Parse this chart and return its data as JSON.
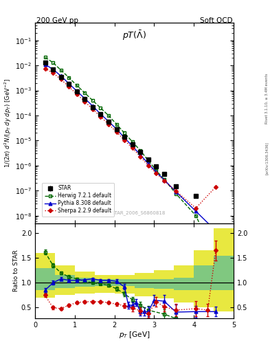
{
  "title_left": "200 GeV pp",
  "title_right": "Soft QCD",
  "panel_title": "pT($\\bar{\\Lambda}$)",
  "ylabel_main": "1/(2$\\pi$) d$^2$N/(p$_T$ dy dp$_T$) [GeV$^{-2}$]",
  "ylabel_ratio": "Ratio to STAR",
  "xlabel": "p$_T$ [GeV]",
  "watermark": "STAR_2006_S6860818",
  "right_label": "Rivet 3.1.10, ≥ 3.4M events",
  "arxiv_label": "[arXiv:1306.3436]",
  "star_x": [
    0.25,
    0.45,
    0.65,
    0.85,
    1.05,
    1.25,
    1.45,
    1.65,
    1.85,
    2.05,
    2.25,
    2.45,
    2.65,
    2.85,
    3.05,
    3.25,
    3.55,
    4.05
  ],
  "star_y": [
    0.013,
    0.007,
    0.0035,
    0.0018,
    0.0009,
    0.00045,
    0.00022,
    0.00011,
    5.5e-05,
    2.8e-05,
    1.4e-05,
    7e-06,
    3.5e-06,
    1.8e-06,
    9e-07,
    4.5e-07,
    1.5e-07,
    6e-08
  ],
  "star_yerr": [
    0.0008,
    0.0004,
    0.0002,
    0.0001,
    5e-05,
    2.5e-05,
    1.2e-05,
    6e-06,
    3e-06,
    1.5e-06,
    8e-07,
    4e-07,
    2e-07,
    1e-07,
    5e-08,
    2.5e-08,
    1e-08,
    5e-09
  ],
  "herwig_x": [
    0.25,
    0.45,
    0.65,
    0.85,
    1.05,
    1.25,
    1.45,
    1.65,
    1.85,
    2.05,
    2.25,
    2.45,
    2.65,
    2.85,
    3.05,
    3.25,
    3.55,
    4.05,
    4.55
  ],
  "herwig_y": [
    0.021,
    0.013,
    0.0065,
    0.0033,
    0.0016,
    0.0008,
    0.0004,
    0.0002,
    0.0001,
    4.5e-05,
    2e-05,
    9e-06,
    4e-06,
    1.6e-06,
    6.5e-07,
    2.8e-07,
    7.5e-08,
    1e-08,
    2e-10
  ],
  "pythia_x": [
    0.25,
    0.45,
    0.65,
    0.85,
    1.05,
    1.25,
    1.45,
    1.65,
    1.85,
    2.05,
    2.25,
    2.45,
    2.65,
    2.85,
    3.05,
    3.25,
    3.55,
    4.05,
    4.55
  ],
  "pythia_y": [
    0.011,
    0.007,
    0.0038,
    0.0019,
    0.00095,
    0.00048,
    0.00024,
    0.000115,
    5.8e-05,
    2.9e-05,
    1.3e-05,
    6e-06,
    2.7e-06,
    1.2e-06,
    5.5e-07,
    2.7e-07,
    9e-08,
    1.5e-08,
    2.5e-09
  ],
  "sherpa_x": [
    0.25,
    0.45,
    0.65,
    0.85,
    1.05,
    1.25,
    1.45,
    1.65,
    1.85,
    2.05,
    2.25,
    2.45,
    2.65,
    2.85,
    3.05,
    3.25,
    3.55,
    4.05,
    4.55
  ],
  "sherpa_y": [
    0.0075,
    0.005,
    0.0028,
    0.0014,
    0.00072,
    0.00036,
    0.00018,
    9e-05,
    4.5e-05,
    2.2e-05,
    1.05e-05,
    5e-06,
    2.3e-06,
    1e-06,
    5e-07,
    2.5e-07,
    9.5e-08,
    2e-08,
    1.4e-07
  ],
  "band_x_edges": [
    0.0,
    0.5,
    1.0,
    1.5,
    2.0,
    2.5,
    3.0,
    3.5,
    4.0,
    4.5,
    5.0
  ],
  "green_lo": [
    0.85,
    0.9,
    0.92,
    0.93,
    0.93,
    0.9,
    0.88,
    0.85,
    0.85,
    0.85
  ],
  "green_hi": [
    1.3,
    1.15,
    1.1,
    1.07,
    1.07,
    1.07,
    1.07,
    1.1,
    1.35,
    1.55
  ],
  "yellow_lo": [
    0.7,
    0.75,
    0.78,
    0.8,
    0.78,
    0.73,
    0.68,
    0.6,
    0.5,
    0.42
  ],
  "yellow_hi": [
    1.6,
    1.35,
    1.22,
    1.15,
    1.15,
    1.2,
    1.25,
    1.35,
    1.65,
    2.1
  ],
  "ratio_herwig_x": [
    0.25,
    0.45,
    0.65,
    0.85,
    1.05,
    1.25,
    1.45,
    1.65,
    1.85,
    2.05,
    2.25,
    2.45,
    2.65,
    2.85,
    3.25,
    3.55,
    4.05
  ],
  "ratio_herwig_y": [
    1.62,
    1.35,
    1.2,
    1.12,
    1.08,
    1.03,
    1.0,
    0.98,
    0.95,
    0.88,
    0.78,
    0.66,
    0.55,
    0.45,
    0.37,
    0.28,
    0.12
  ],
  "ratio_herwig_yerr": [
    0.05,
    0.04,
    0.03,
    0.03,
    0.02,
    0.02,
    0.02,
    0.02,
    0.03,
    0.04,
    0.05,
    0.06,
    0.07,
    0.08,
    0.1,
    0.12,
    0.05
  ],
  "ratio_pythia_x": [
    0.25,
    0.45,
    0.65,
    0.85,
    1.05,
    1.25,
    1.45,
    1.65,
    1.85,
    2.05,
    2.25,
    2.35,
    2.45,
    2.55,
    2.65,
    2.75,
    2.85,
    3.0,
    3.25,
    3.55,
    4.05,
    4.55
  ],
  "ratio_pythia_y": [
    0.85,
    1.0,
    1.08,
    1.05,
    1.05,
    1.06,
    1.08,
    1.05,
    1.05,
    1.03,
    0.92,
    0.55,
    0.55,
    0.6,
    0.42,
    0.42,
    0.42,
    0.65,
    0.63,
    0.41,
    0.42,
    0.42
  ],
  "ratio_pythia_yerr": [
    0.05,
    0.04,
    0.03,
    0.03,
    0.02,
    0.02,
    0.02,
    0.02,
    0.03,
    0.04,
    0.06,
    0.07,
    0.07,
    0.07,
    0.08,
    0.08,
    0.1,
    0.1,
    0.12,
    0.15,
    0.12,
    0.1
  ],
  "ratio_sherpa_x": [
    0.25,
    0.45,
    0.65,
    0.85,
    1.05,
    1.25,
    1.45,
    1.65,
    1.85,
    2.05,
    2.25,
    2.45,
    2.65,
    2.85,
    3.05,
    3.25,
    3.55,
    4.05,
    4.35,
    4.55
  ],
  "ratio_sherpa_y": [
    0.75,
    0.5,
    0.48,
    0.55,
    0.6,
    0.62,
    0.62,
    0.62,
    0.6,
    0.57,
    0.54,
    0.49,
    0.44,
    0.38,
    0.62,
    0.52,
    0.45,
    0.48,
    0.45,
    1.65
  ],
  "ratio_sherpa_yerr": [
    0.04,
    0.04,
    0.03,
    0.03,
    0.03,
    0.03,
    0.03,
    0.03,
    0.03,
    0.04,
    0.05,
    0.06,
    0.07,
    0.08,
    0.1,
    0.1,
    0.12,
    0.15,
    0.12,
    0.2
  ],
  "star_color": "#000000",
  "herwig_color": "#006600",
  "pythia_color": "#0000cc",
  "sherpa_color": "#cc0000",
  "green_band_color": "#80c880",
  "yellow_band_color": "#e8e840",
  "ylim_main": [
    5e-09,
    0.5
  ],
  "ylim_ratio": [
    0.28,
    2.2
  ],
  "xlim": [
    0.0,
    5.0
  ]
}
